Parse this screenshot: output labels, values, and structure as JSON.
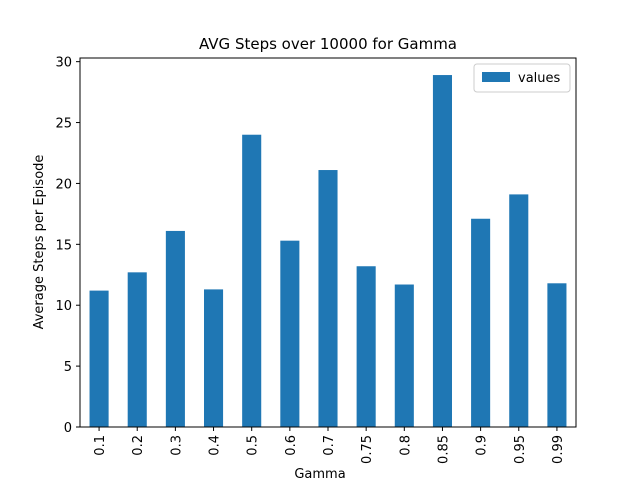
{
  "chart_data": {
    "type": "bar",
    "title": "AVG Steps over 10000 for Gamma",
    "x_label": "Gamma",
    "y_label": "Average Steps per Episode",
    "categories": [
      "0.1",
      "0.2",
      "0.3",
      "0.4",
      "0.5",
      "0.6",
      "0.7",
      "0.75",
      "0.8",
      "0.85",
      "0.9",
      "0.95",
      "0.99"
    ],
    "series": [
      {
        "name": "values",
        "color": "#1f77b4",
        "values": [
          11.2,
          12.7,
          16.1,
          11.3,
          24.0,
          15.3,
          21.1,
          13.2,
          11.7,
          28.9,
          17.1,
          19.1,
          11.8
        ]
      }
    ],
    "ylim": [
      0,
      30.3
    ],
    "yticks": [
      0,
      5,
      10,
      15,
      20,
      25,
      30
    ],
    "grid": false,
    "legend": "upper right"
  }
}
